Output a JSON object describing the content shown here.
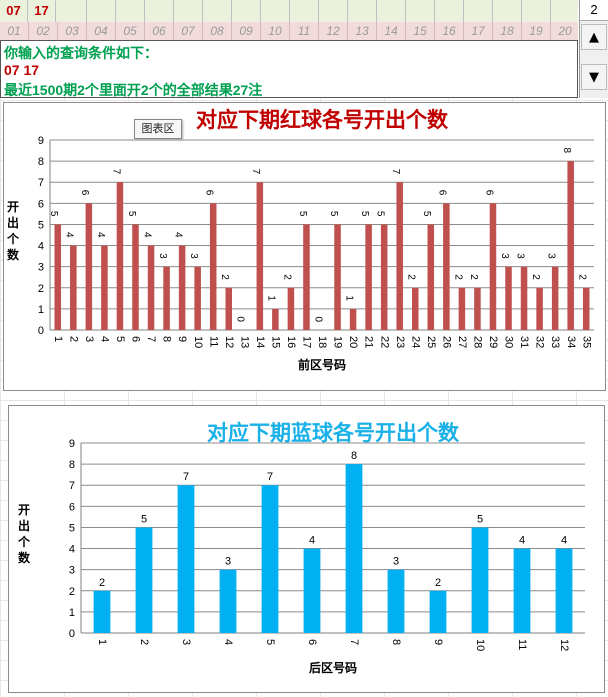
{
  "selection": {
    "selected_numbers": [
      "07",
      "17"
    ],
    "header_numbers": [
      "01",
      "02",
      "03",
      "04",
      "05",
      "06",
      "07",
      "08",
      "09",
      "10",
      "11",
      "12",
      "13",
      "14",
      "15",
      "16",
      "17",
      "18",
      "19",
      "20"
    ]
  },
  "info": {
    "prompt": "你输入的查询条件如下：",
    "condition": " 07  17",
    "result": "最近1500期2个里面开2个的全部结果27注"
  },
  "scroll": {
    "value": "2",
    "up_icon": "triangle-up-icon",
    "down_icon": "triangle-down-icon"
  },
  "tooltip": "图表区",
  "colors": {
    "red_bar": "#c0504d",
    "blue_bar": "#00b0f0",
    "red_title": "#c00000",
    "blue_title": "#1ab0e8",
    "info_text": "#00a050",
    "selected_text": "#c00000"
  },
  "chart_data": [
    {
      "type": "bar",
      "title": "对应下期红球各号开出个数",
      "xlabel": "前区号码",
      "ylabel": "开出个数",
      "ylim": [
        0,
        9
      ],
      "grid": true,
      "categories": [
        "1",
        "2",
        "3",
        "4",
        "5",
        "6",
        "7",
        "8",
        "9",
        "10",
        "11",
        "12",
        "13",
        "14",
        "15",
        "16",
        "17",
        "18",
        "19",
        "20",
        "21",
        "22",
        "23",
        "24",
        "25",
        "26",
        "27",
        "28",
        "29",
        "30",
        "31",
        "32",
        "33",
        "34",
        "35"
      ],
      "values": [
        5,
        4,
        6,
        4,
        7,
        5,
        4,
        3,
        4,
        3,
        6,
        2,
        0,
        7,
        1,
        2,
        5,
        0,
        5,
        1,
        5,
        5,
        7,
        2,
        5,
        6,
        2,
        2,
        6,
        3,
        3,
        2,
        3,
        8,
        2
      ]
    },
    {
      "type": "bar",
      "title": "对应下期蓝球各号开出个数",
      "xlabel": "后区号码",
      "ylabel": "开出个数",
      "ylim": [
        0,
        9
      ],
      "grid": true,
      "categories": [
        "1",
        "2",
        "3",
        "4",
        "5",
        "6",
        "7",
        "8",
        "9",
        "10",
        "11",
        "12"
      ],
      "values": [
        2,
        5,
        7,
        3,
        7,
        4,
        8,
        3,
        2,
        5,
        4,
        4
      ]
    }
  ]
}
